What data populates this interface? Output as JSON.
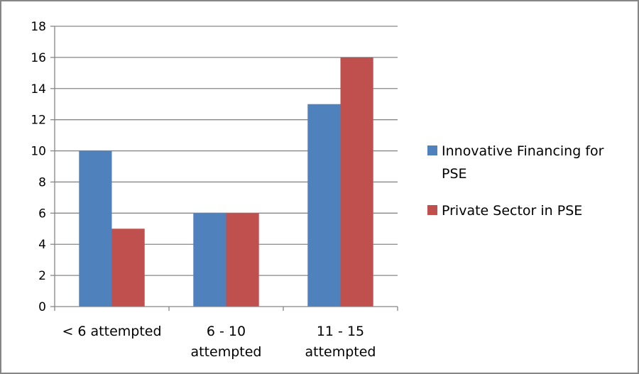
{
  "chart_data": {
    "type": "bar",
    "categories": [
      [
        "< 6 attempted"
      ],
      [
        "6 - 10",
        "attempted"
      ],
      [
        "11 - 15",
        "attempted"
      ]
    ],
    "series": [
      {
        "name": [
          "Innovative Financing for",
          "PSE"
        ],
        "color": "#4F81BD",
        "values": [
          10,
          6,
          13
        ]
      },
      {
        "name": [
          "Private Sector in PSE"
        ],
        "color": "#C0504D",
        "values": [
          5,
          6,
          16
        ]
      }
    ],
    "ylim": [
      0,
      18
    ],
    "yticks": [
      0,
      2,
      4,
      6,
      8,
      10,
      12,
      14,
      16,
      18
    ],
    "grid": true,
    "legend_position": "right",
    "title": "",
    "xlabel": "",
    "ylabel": ""
  }
}
